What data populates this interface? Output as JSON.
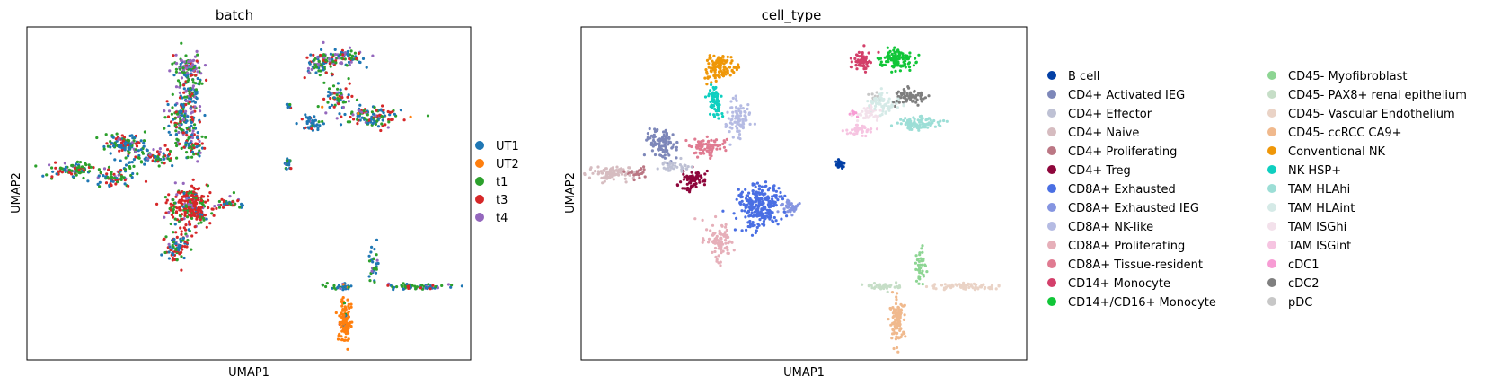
{
  "chart_data": [
    {
      "type": "scatter",
      "title": "batch",
      "xlabel": "UMAP1",
      "ylabel": "UMAP2",
      "grid": false,
      "ticks": "none",
      "legend_position": "right",
      "xlim": [
        0,
        100
      ],
      "ylim": [
        0,
        100
      ],
      "series": [
        {
          "name": "UT1",
          "color": "#1f77b4"
        },
        {
          "name": "UT2",
          "color": "#ff7f0e"
        },
        {
          "name": "t1",
          "color": "#2ca02c"
        },
        {
          "name": "t3",
          "color": "#d62728"
        },
        {
          "name": "t4",
          "color": "#9467bd"
        }
      ],
      "clusters": [
        {
          "x": 37,
          "y": 82,
          "rx": 2.5,
          "ry": 8,
          "n": 110,
          "mix": [
            0.3,
            0,
            0.3,
            0.2,
            0.2
          ]
        },
        {
          "x": 35,
          "y": 72,
          "rx": 3,
          "ry": 5,
          "n": 110,
          "mix": [
            0.35,
            0,
            0.25,
            0.25,
            0.15
          ]
        },
        {
          "x": 37,
          "y": 65,
          "rx": 2.5,
          "ry": 4,
          "n": 70,
          "mix": [
            0.3,
            0,
            0.3,
            0.3,
            0.1
          ]
        },
        {
          "x": 36,
          "y": 88,
          "rx": 3,
          "ry": 3,
          "n": 70,
          "mix": [
            0.15,
            0,
            0.25,
            0.1,
            0.5
          ]
        },
        {
          "x": 22,
          "y": 65,
          "rx": 4,
          "ry": 3,
          "n": 110,
          "mix": [
            0.4,
            0,
            0.3,
            0.2,
            0.1
          ]
        },
        {
          "x": 28,
          "y": 61,
          "rx": 5,
          "ry": 2.5,
          "n": 80,
          "mix": [
            0.35,
            0,
            0.35,
            0.2,
            0.1
          ]
        },
        {
          "x": 10,
          "y": 57,
          "rx": 5,
          "ry": 2,
          "n": 90,
          "mix": [
            0.2,
            0,
            0.5,
            0.2,
            0.1
          ]
        },
        {
          "x": 20,
          "y": 55,
          "rx": 4,
          "ry": 2.5,
          "n": 70,
          "mix": [
            0.3,
            0,
            0.3,
            0.3,
            0.1
          ]
        },
        {
          "x": 37,
          "y": 46,
          "rx": 4.5,
          "ry": 6,
          "n": 260,
          "mix": [
            0.08,
            0,
            0.2,
            0.65,
            0.07
          ]
        },
        {
          "x": 34,
          "y": 34,
          "rx": 2.5,
          "ry": 4,
          "n": 80,
          "mix": [
            0.25,
            0,
            0.3,
            0.4,
            0.05
          ]
        },
        {
          "x": 45,
          "y": 47,
          "rx": 2.5,
          "ry": 1.5,
          "n": 40,
          "mix": [
            0.3,
            0,
            0.4,
            0.2,
            0.1
          ]
        },
        {
          "x": 66,
          "y": 89,
          "rx": 3,
          "ry": 3,
          "n": 80,
          "mix": [
            0.3,
            0,
            0.3,
            0.2,
            0.2
          ]
        },
        {
          "x": 72,
          "y": 91,
          "rx": 4,
          "ry": 2,
          "n": 70,
          "mix": [
            0.25,
            0,
            0.3,
            0.2,
            0.25
          ]
        },
        {
          "x": 70,
          "y": 79,
          "rx": 3,
          "ry": 4,
          "n": 60,
          "mix": [
            0.3,
            0.05,
            0.3,
            0.2,
            0.15
          ]
        },
        {
          "x": 78,
          "y": 73,
          "rx": 6,
          "ry": 2.5,
          "n": 120,
          "mix": [
            0.3,
            0.05,
            0.25,
            0.3,
            0.1
          ]
        },
        {
          "x": 64,
          "y": 71,
          "rx": 2,
          "ry": 2,
          "n": 40,
          "mix": [
            0.8,
            0,
            0.1,
            0.05,
            0.05
          ]
        },
        {
          "x": 59,
          "y": 76,
          "rx": 1,
          "ry": 1,
          "n": 10,
          "mix": [
            0.8,
            0,
            0.1,
            0.05,
            0.05
          ]
        },
        {
          "x": 59,
          "y": 59,
          "rx": 1,
          "ry": 1.5,
          "n": 20,
          "mix": [
            0.5,
            0,
            0.3,
            0.1,
            0.1
          ]
        },
        {
          "x": 71,
          "y": 22,
          "rx": 3,
          "ry": 1,
          "n": 30,
          "mix": [
            0.5,
            0.1,
            0.3,
            0.05,
            0.05
          ]
        },
        {
          "x": 88,
          "y": 22,
          "rx": 7,
          "ry": 0.8,
          "n": 60,
          "mix": [
            0.4,
            0,
            0.4,
            0.1,
            0.1
          ]
        },
        {
          "x": 78,
          "y": 29,
          "rx": 1,
          "ry": 5,
          "n": 30,
          "mix": [
            0.6,
            0,
            0.3,
            0.05,
            0.05
          ]
        },
        {
          "x": 71.5,
          "y": 12,
          "rx": 1.2,
          "ry": 6,
          "n": 110,
          "mix": [
            0.02,
            0.93,
            0.03,
            0.01,
            0.01
          ]
        }
      ]
    },
    {
      "type": "scatter",
      "title": "cell_type",
      "xlabel": "UMAP1",
      "ylabel": "UMAP2",
      "grid": false,
      "ticks": "none",
      "legend_position": "right",
      "xlim": [
        0,
        100
      ],
      "ylim": [
        0,
        100
      ],
      "series": [
        {
          "name": "B cell",
          "color": "#023fa5"
        },
        {
          "name": "CD4+ Activated IEG",
          "color": "#7d87b9"
        },
        {
          "name": "CD4+ Effector",
          "color": "#bec1d4"
        },
        {
          "name": "CD4+ Naive",
          "color": "#d6bcc0"
        },
        {
          "name": "CD4+ Proliferating",
          "color": "#bb7784"
        },
        {
          "name": "CD4+ Treg",
          "color": "#8e063b"
        },
        {
          "name": "CD8A+ Exhausted",
          "color": "#4a6fe3"
        },
        {
          "name": "CD8A+ Exhausted IEG",
          "color": "#8595e1"
        },
        {
          "name": "CD8A+ NK-like",
          "color": "#b5bbe3"
        },
        {
          "name": "CD8A+ Proliferating",
          "color": "#e6afb9"
        },
        {
          "name": "CD8A+ Tissue-resident",
          "color": "#e07b91"
        },
        {
          "name": "CD14+ Monocyte",
          "color": "#d33f6a"
        },
        {
          "name": "CD14+/CD16+ Monocyte",
          "color": "#11c638"
        },
        {
          "name": "CD45- Myofibroblast",
          "color": "#8dd593"
        },
        {
          "name": "CD45- PAX8+ renal epithelium",
          "color": "#c6dec7"
        },
        {
          "name": "CD45- Vascular Endothelium",
          "color": "#ead3c6"
        },
        {
          "name": "CD45- ccRCC CA9+",
          "color": "#f0b98d"
        },
        {
          "name": "Conventional NK",
          "color": "#ef9708"
        },
        {
          "name": "NK HSP+",
          "color": "#0fcfc0"
        },
        {
          "name": "TAM HLAhi",
          "color": "#9cded6"
        },
        {
          "name": "TAM HLAint",
          "color": "#d5eae7"
        },
        {
          "name": "TAM ISGhi",
          "color": "#f3e1eb"
        },
        {
          "name": "TAM ISGint",
          "color": "#f6c4e1"
        },
        {
          "name": "cDC1",
          "color": "#f79cd4"
        },
        {
          "name": "cDC2",
          "color": "#7f7f7f"
        },
        {
          "name": "pDC",
          "color": "#c7c7c7"
        }
      ],
      "clusters": [
        {
          "x": 58,
          "y": 59,
          "rx": 0.8,
          "ry": 1.5,
          "n": 25,
          "s": 0
        },
        {
          "x": 18,
          "y": 65,
          "rx": 3,
          "ry": 4,
          "n": 100,
          "s": 1
        },
        {
          "x": 21,
          "y": 58,
          "rx": 3,
          "ry": 2,
          "n": 40,
          "s": 2
        },
        {
          "x": 7,
          "y": 56,
          "rx": 4,
          "ry": 2,
          "n": 90,
          "s": 3
        },
        {
          "x": 13,
          "y": 56,
          "rx": 2,
          "ry": 1.5,
          "n": 25,
          "s": 4
        },
        {
          "x": 25,
          "y": 54,
          "rx": 2.5,
          "ry": 2.5,
          "n": 70,
          "s": 5
        },
        {
          "x": 40,
          "y": 46,
          "rx": 4.5,
          "ry": 6,
          "n": 250,
          "s": 6
        },
        {
          "x": 47,
          "y": 46,
          "rx": 2,
          "ry": 1.5,
          "n": 40,
          "s": 7
        },
        {
          "x": 35,
          "y": 73,
          "rx": 2.5,
          "ry": 5,
          "n": 80,
          "s": 8
        },
        {
          "x": 31,
          "y": 36,
          "rx": 3,
          "ry": 5,
          "n": 90,
          "s": 9
        },
        {
          "x": 28,
          "y": 64,
          "rx": 3.5,
          "ry": 2.5,
          "n": 80,
          "s": 10
        },
        {
          "x": 63,
          "y": 90,
          "rx": 2,
          "ry": 3,
          "n": 70,
          "s": 11
        },
        {
          "x": 71,
          "y": 90,
          "rx": 3.5,
          "ry": 3,
          "n": 110,
          "s": 12
        },
        {
          "x": 76,
          "y": 28,
          "rx": 1,
          "ry": 5,
          "n": 40,
          "s": 13
        },
        {
          "x": 68,
          "y": 22,
          "rx": 4,
          "ry": 1,
          "n": 40,
          "s": 14
        },
        {
          "x": 87,
          "y": 22,
          "rx": 7,
          "ry": 0.8,
          "n": 70,
          "s": 15
        },
        {
          "x": 71,
          "y": 12,
          "rx": 1.2,
          "ry": 6,
          "n": 110,
          "s": 16
        },
        {
          "x": 31,
          "y": 88,
          "rx": 3,
          "ry": 3.5,
          "n": 110,
          "s": 17
        },
        {
          "x": 30,
          "y": 78,
          "rx": 1.5,
          "ry": 4,
          "n": 60,
          "s": 18
        },
        {
          "x": 76,
          "y": 71,
          "rx": 4,
          "ry": 2,
          "n": 90,
          "s": 19
        },
        {
          "x": 68,
          "y": 77,
          "rx": 4,
          "ry": 3,
          "n": 70,
          "s": 20
        },
        {
          "x": 64,
          "y": 74,
          "rx": 3,
          "ry": 2,
          "n": 40,
          "s": 21
        },
        {
          "x": 63,
          "y": 69,
          "rx": 2.5,
          "ry": 1.5,
          "n": 40,
          "s": 22
        },
        {
          "x": 61,
          "y": 74,
          "rx": 1,
          "ry": 1,
          "n": 10,
          "s": 23
        },
        {
          "x": 74,
          "y": 79,
          "rx": 3.5,
          "ry": 2,
          "n": 70,
          "s": 24
        },
        {
          "x": 66,
          "y": 79,
          "rx": 1,
          "ry": 1,
          "n": 8,
          "s": 25
        }
      ]
    }
  ]
}
